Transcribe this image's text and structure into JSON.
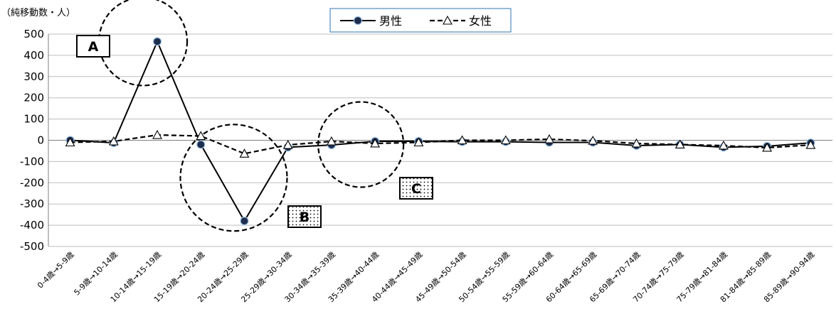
{
  "chart_data": {
    "type": "line",
    "ylabel": "（純移動数・人）",
    "ylim": [
      -500,
      500
    ],
    "yticks": [
      500,
      400,
      300,
      200,
      100,
      0,
      -100,
      -200,
      -300,
      -400,
      -500
    ],
    "categories": [
      "0-4歳→5-9歳",
      "5-9歳→10-14歳",
      "10-14歳→15-19歳",
      "15-19歳→20-24歳",
      "20-24歳→25-29歳",
      "25-29歳→30-34歳",
      "30-34歳→35-39歳",
      "35-39歳→40-44歳",
      "40-44歳→45-49歳",
      "45-49歳→50-54歳",
      "50-54歳→55-59歳",
      "55-59歳→60-64歳",
      "60-64歳→65-69歳",
      "65-69歳→70-74歳",
      "70-74歳→75-79歳",
      "75-79歳→81-84歳",
      "81-84歳→85-89歳",
      "85-89歳→90-94歳"
    ],
    "series": [
      {
        "name": "男性",
        "color": "#000000",
        "marker": "circle",
        "line": "solid",
        "values": [
          0,
          -12,
          465,
          -20,
          -380,
          -33,
          -22,
          -5,
          -5,
          -7,
          -7,
          -10,
          -10,
          -25,
          -20,
          -33,
          -28,
          -12
        ]
      },
      {
        "name": "女性",
        "color": "#000000",
        "marker": "triangle",
        "line": "dashed",
        "values": [
          -10,
          -5,
          25,
          20,
          -63,
          -22,
          -5,
          -15,
          -10,
          0,
          0,
          5,
          -2,
          -15,
          -20,
          -25,
          -35,
          -22
        ]
      }
    ],
    "annotations": [
      {
        "label": "A",
        "fill": "white",
        "category_index": 2
      },
      {
        "label": "B",
        "fill": "dotted",
        "category_index": 4
      },
      {
        "label": "C",
        "fill": "dotted",
        "category_index": 7
      }
    ],
    "grid": true,
    "legend": "top-center"
  }
}
